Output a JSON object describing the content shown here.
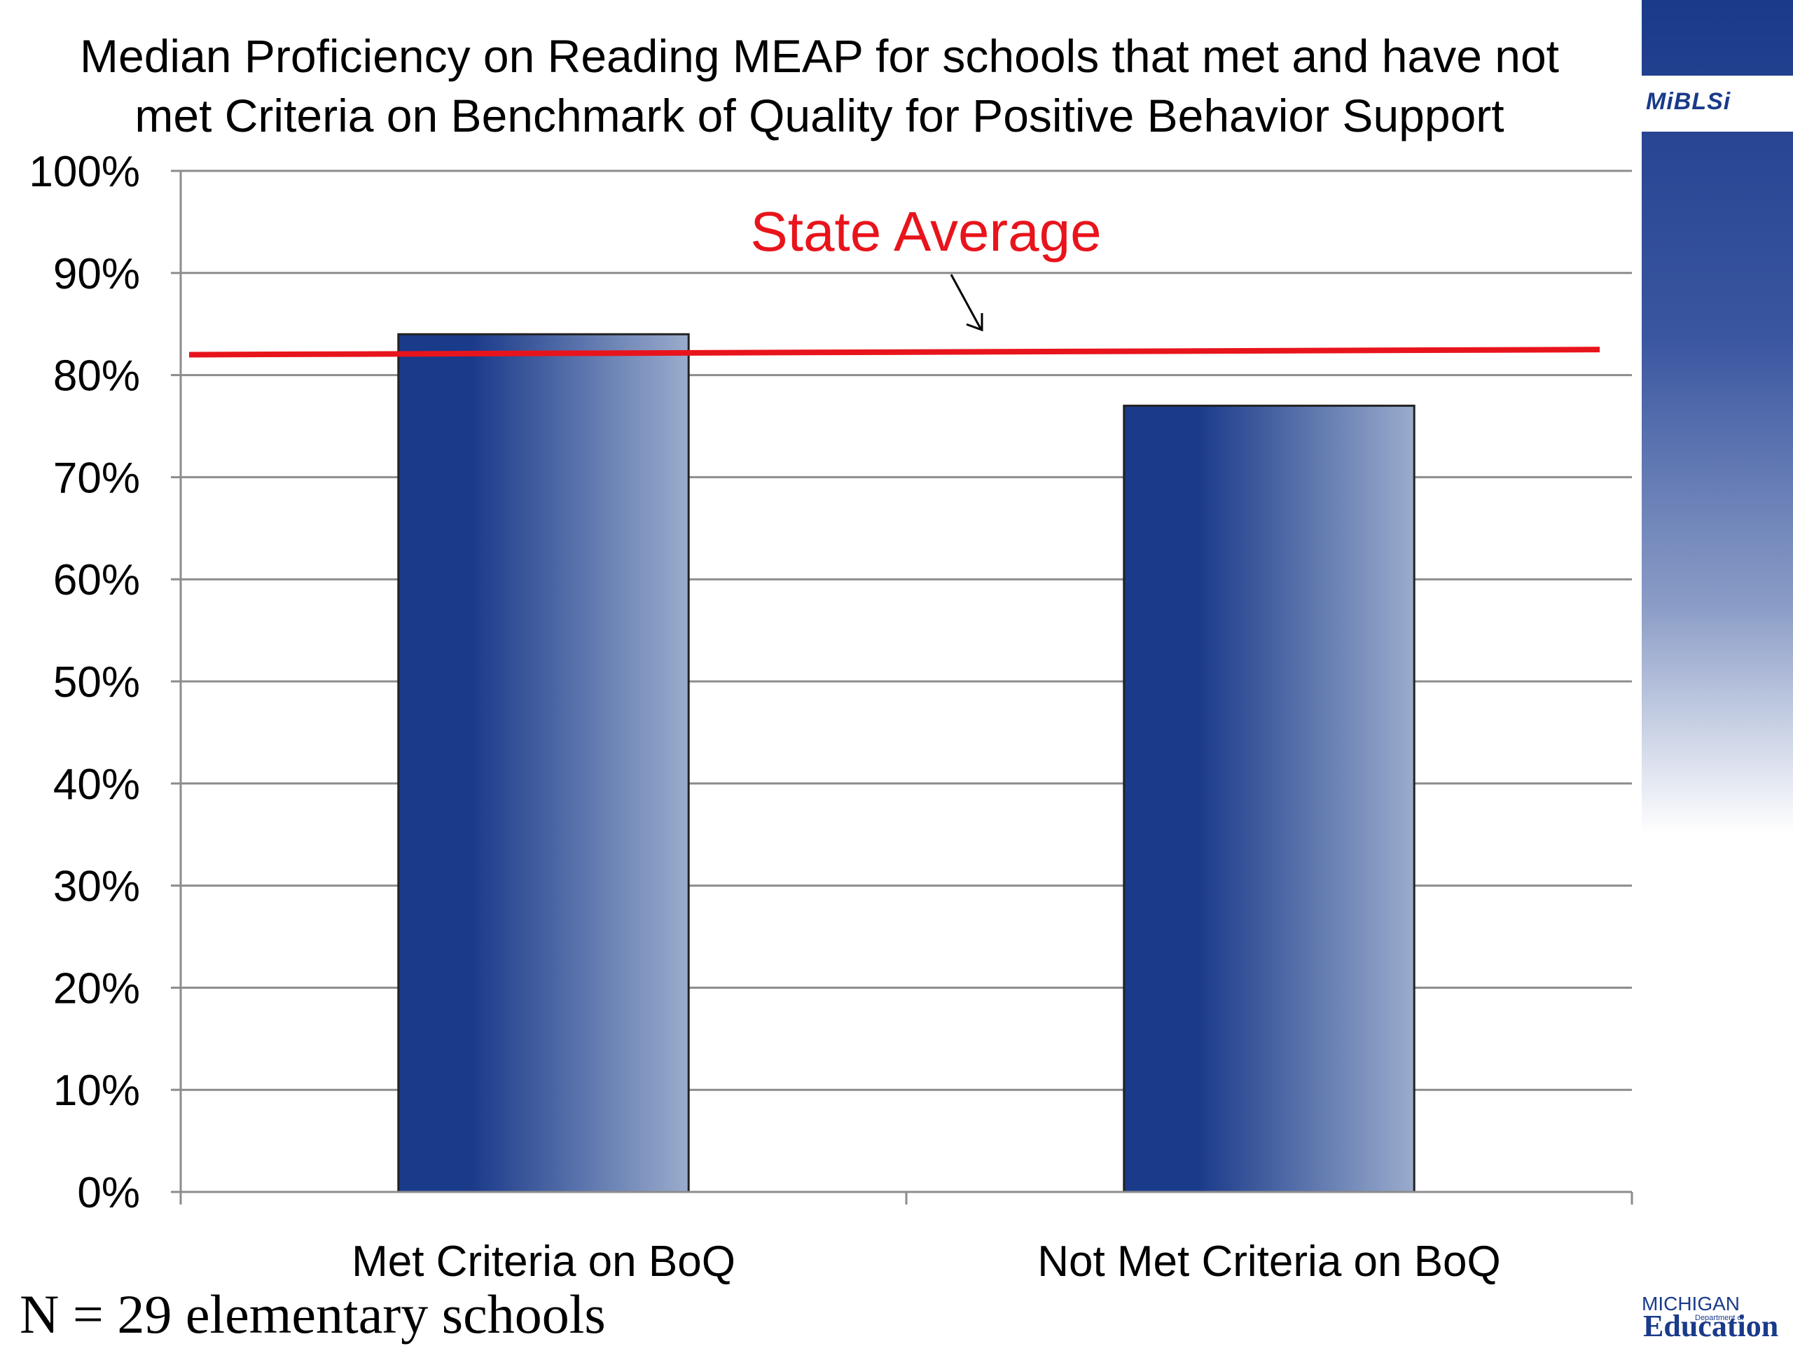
{
  "slide": {
    "title_line_1": "Median Proficiency on Reading MEAP for schools that met and have not",
    "title_line_2": "met Criteria on Benchmark of Quality for Positive Behavior Support",
    "footnote": "N = 29 elementary schools",
    "logo_top_text": "MiBLSi",
    "logo_bottom_michigan": "MICHIGAN",
    "logo_bottom_dept": "Department of",
    "logo_bottom_education": "Education",
    "accent_color": "#1a3a8a"
  },
  "chart_data": {
    "type": "bar",
    "title": "Median Proficiency on Reading MEAP for schools that met and have not met Criteria on Benchmark of Quality for Positive Behavior Support",
    "categories": [
      "Met Criteria on BoQ",
      "Not Met Criteria on BoQ"
    ],
    "values": [
      84,
      77
    ],
    "ylim": [
      0,
      100
    ],
    "yticks": [
      "0%",
      "10%",
      "20%",
      "30%",
      "40%",
      "50%",
      "60%",
      "70%",
      "80%",
      "90%",
      "100%"
    ],
    "grid": true,
    "bar_colors": [
      "#1a3a8a",
      "#9aaccd"
    ],
    "reference_line": {
      "label": "State Average",
      "value_start": 82,
      "value_end": 82.5,
      "color": "#e8141c"
    }
  }
}
